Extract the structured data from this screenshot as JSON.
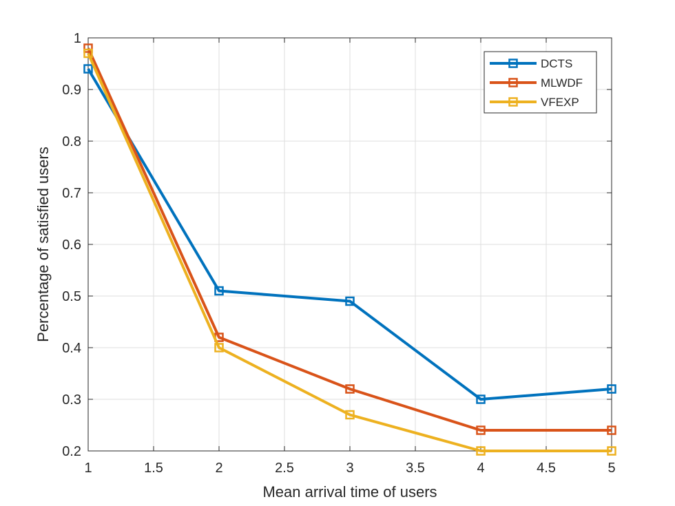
{
  "chart_data": {
    "type": "line",
    "title": "",
    "xlabel": "Mean arrival time of users",
    "ylabel": "Percentage of satisfied users",
    "xlim": [
      1,
      5
    ],
    "ylim": [
      0.2,
      1
    ],
    "xticks": [
      1,
      1.5,
      2,
      2.5,
      3,
      3.5,
      4,
      4.5,
      5
    ],
    "xtick_labels": [
      "1",
      "1.5",
      "2",
      "2.5",
      "3",
      "3.5",
      "4",
      "4.5",
      "5"
    ],
    "yticks": [
      0.2,
      0.3,
      0.4,
      0.5,
      0.6,
      0.7,
      0.8,
      0.9,
      1
    ],
    "ytick_labels": [
      "0.2",
      "0.3",
      "0.4",
      "0.5",
      "0.6",
      "0.7",
      "0.8",
      "0.9",
      "1"
    ],
    "grid": true,
    "legend_position": "top-right",
    "x": [
      1,
      2,
      3,
      4,
      5
    ],
    "series": [
      {
        "name": "DCTS",
        "color": "#0072BD",
        "marker": "square",
        "values": [
          0.94,
          0.51,
          0.49,
          0.3,
          0.32
        ]
      },
      {
        "name": "MLWDF",
        "color": "#D95319",
        "marker": "square",
        "values": [
          0.98,
          0.42,
          0.32,
          0.24,
          0.24
        ]
      },
      {
        "name": "VFEXP",
        "color": "#EDB120",
        "marker": "square",
        "values": [
          0.97,
          0.4,
          0.27,
          0.2,
          0.2
        ]
      }
    ]
  }
}
